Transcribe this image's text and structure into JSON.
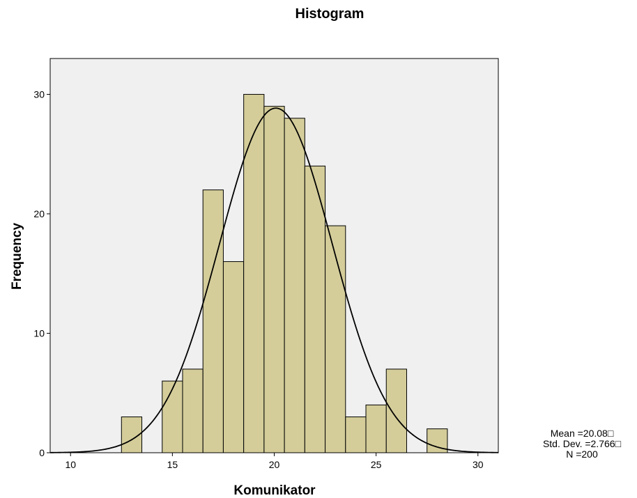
{
  "chart_data": {
    "type": "bar",
    "title": "Histogram",
    "xlabel": "Komunikator",
    "ylabel": "Frequency",
    "xlim": [
      9,
      31
    ],
    "ylim": [
      0,
      33
    ],
    "x_ticks": [
      10,
      15,
      20,
      25,
      30
    ],
    "y_ticks": [
      0,
      10,
      20,
      30
    ],
    "bin_width": 1,
    "bins": [
      {
        "start": 12.5,
        "end": 13.5,
        "count": 3
      },
      {
        "start": 14.5,
        "end": 15.5,
        "count": 6
      },
      {
        "start": 15.5,
        "end": 16.5,
        "count": 7
      },
      {
        "start": 16.5,
        "end": 17.5,
        "count": 22
      },
      {
        "start": 17.5,
        "end": 18.5,
        "count": 16
      },
      {
        "start": 18.5,
        "end": 19.5,
        "count": 30
      },
      {
        "start": 19.5,
        "end": 20.5,
        "count": 29
      },
      {
        "start": 20.5,
        "end": 21.5,
        "count": 28
      },
      {
        "start": 21.5,
        "end": 22.5,
        "count": 24
      },
      {
        "start": 22.5,
        "end": 23.5,
        "count": 19
      },
      {
        "start": 23.5,
        "end": 24.5,
        "count": 3
      },
      {
        "start": 24.5,
        "end": 25.5,
        "count": 4
      },
      {
        "start": 25.5,
        "end": 26.5,
        "count": 7
      },
      {
        "start": 27.5,
        "end": 28.5,
        "count": 2
      }
    ],
    "normal_curve": {
      "mean": 20.08,
      "std": 2.766,
      "n": 200
    },
    "colors": {
      "bar_fill": "#d4cd9a",
      "bar_stroke": "#000000",
      "plot_bg": "#f0f0f0",
      "curve": "#000000"
    },
    "grid": false,
    "legend": "none"
  },
  "stats": {
    "mean": "Mean =20.08□",
    "std": "Std. Dev. =2.766□",
    "n": "N =200"
  }
}
